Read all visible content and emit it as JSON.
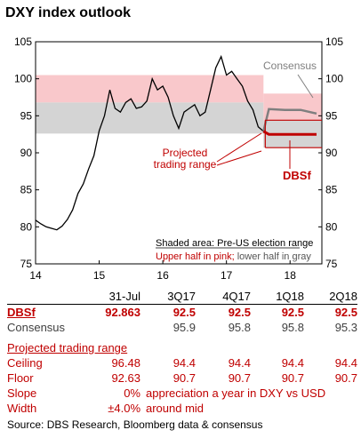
{
  "title": "DXY index outlook",
  "chart_data": {
    "type": "line",
    "x_ticks": [
      "14",
      "15",
      "16",
      "17",
      "18"
    ],
    "y_ticks": [
      75,
      80,
      85,
      90,
      95,
      100,
      105
    ],
    "ylim": [
      75,
      105
    ],
    "x_range": [
      "2014-01",
      "2018-07"
    ],
    "shading": {
      "label": "Shaded area: Pre-US election range",
      "sublabel_pink": "Upper half in pink;",
      "sublabel_gray": "lower half in gray",
      "upper_pink": [
        96.8,
        100.5
      ],
      "lower_gray": [
        92.6,
        96.8
      ],
      "projected_pink": [
        94.4,
        98.0
      ],
      "projected_gray": [
        90.7,
        94.4
      ],
      "colors": {
        "pink": "#f9c8cb",
        "gray": "#d4d4d4"
      }
    },
    "series": [
      {
        "name": "DXY",
        "color": "#000000",
        "points": [
          [
            "2014-01",
            80.9
          ],
          [
            "2014-02",
            80.4
          ],
          [
            "2014-03",
            80.0
          ],
          [
            "2014-04",
            79.8
          ],
          [
            "2014-05",
            79.6
          ],
          [
            "2014-06",
            80.1
          ],
          [
            "2014-07",
            81.0
          ],
          [
            "2014-08",
            82.3
          ],
          [
            "2014-09",
            84.5
          ],
          [
            "2014-10",
            85.8
          ],
          [
            "2014-11",
            87.8
          ],
          [
            "2014-12",
            89.6
          ],
          [
            "2015-01",
            93.0
          ],
          [
            "2015-02",
            95.0
          ],
          [
            "2015-03",
            98.5
          ],
          [
            "2015-04",
            96.0
          ],
          [
            "2015-05",
            95.5
          ],
          [
            "2015-06",
            96.8
          ],
          [
            "2015-07",
            97.3
          ],
          [
            "2015-08",
            96.0
          ],
          [
            "2015-09",
            96.2
          ],
          [
            "2015-10",
            97.0
          ],
          [
            "2015-11",
            100.0
          ],
          [
            "2015-12",
            98.5
          ],
          [
            "2016-01",
            99.0
          ],
          [
            "2016-02",
            97.5
          ],
          [
            "2016-03",
            95.0
          ],
          [
            "2016-04",
            93.3
          ],
          [
            "2016-05",
            95.5
          ],
          [
            "2016-06",
            96.0
          ],
          [
            "2016-07",
            96.5
          ],
          [
            "2016-08",
            95.0
          ],
          [
            "2016-09",
            95.5
          ],
          [
            "2016-10",
            98.5
          ],
          [
            "2016-11",
            101.5
          ],
          [
            "2016-12",
            103.0
          ],
          [
            "2017-01",
            100.5
          ],
          [
            "2017-02",
            101.0
          ],
          [
            "2017-03",
            100.0
          ],
          [
            "2017-04",
            99.0
          ],
          [
            "2017-05",
            97.0
          ],
          [
            "2017-06",
            95.8
          ],
          [
            "2017-07",
            93.5
          ],
          [
            "2017-07-31",
            92.9
          ]
        ]
      },
      {
        "name": "Consensus",
        "color": "#7f7f7f",
        "points": [
          [
            "2017-07-31",
            92.9
          ],
          [
            "2017-09",
            95.9
          ],
          [
            "2017-12",
            95.8
          ],
          [
            "2018-03",
            95.8
          ],
          [
            "2018-06",
            95.3
          ]
        ]
      },
      {
        "name": "DBSf",
        "color": "#c00000",
        "points": [
          [
            "2017-07-31",
            92.9
          ],
          [
            "2017-09",
            92.5
          ],
          [
            "2017-12",
            92.5
          ],
          [
            "2018-03",
            92.5
          ],
          [
            "2018-06",
            92.5
          ]
        ]
      }
    ],
    "annotations": {
      "projected_range": "Projected\ntrading range",
      "consensus": "Consensus",
      "dbsf": "DBSf"
    }
  },
  "table": {
    "headers": [
      "",
      "31-Jul",
      "3Q17",
      "4Q17",
      "1Q18",
      "2Q18"
    ],
    "dbsf": [
      "DBSf",
      "92.863",
      "92.5",
      "92.5",
      "92.5",
      "92.5"
    ],
    "consensus": [
      "Consensus",
      "",
      "95.9",
      "95.8",
      "95.8",
      "95.3"
    ],
    "section_title": "Projected trading range",
    "ceiling": [
      "Ceiling",
      "96.48",
      "94.4",
      "94.4",
      "94.4",
      "94.4"
    ],
    "floor": [
      "Floor",
      "92.63",
      "90.7",
      "90.7",
      "90.7",
      "90.7"
    ],
    "slope": [
      "Slope",
      "0%",
      "appreciation a year in DXY vs USD"
    ],
    "width": [
      "Width",
      "±4.0%",
      "around mid"
    ]
  },
  "source": "Source: DBS Research, Bloomberg data & consensus"
}
